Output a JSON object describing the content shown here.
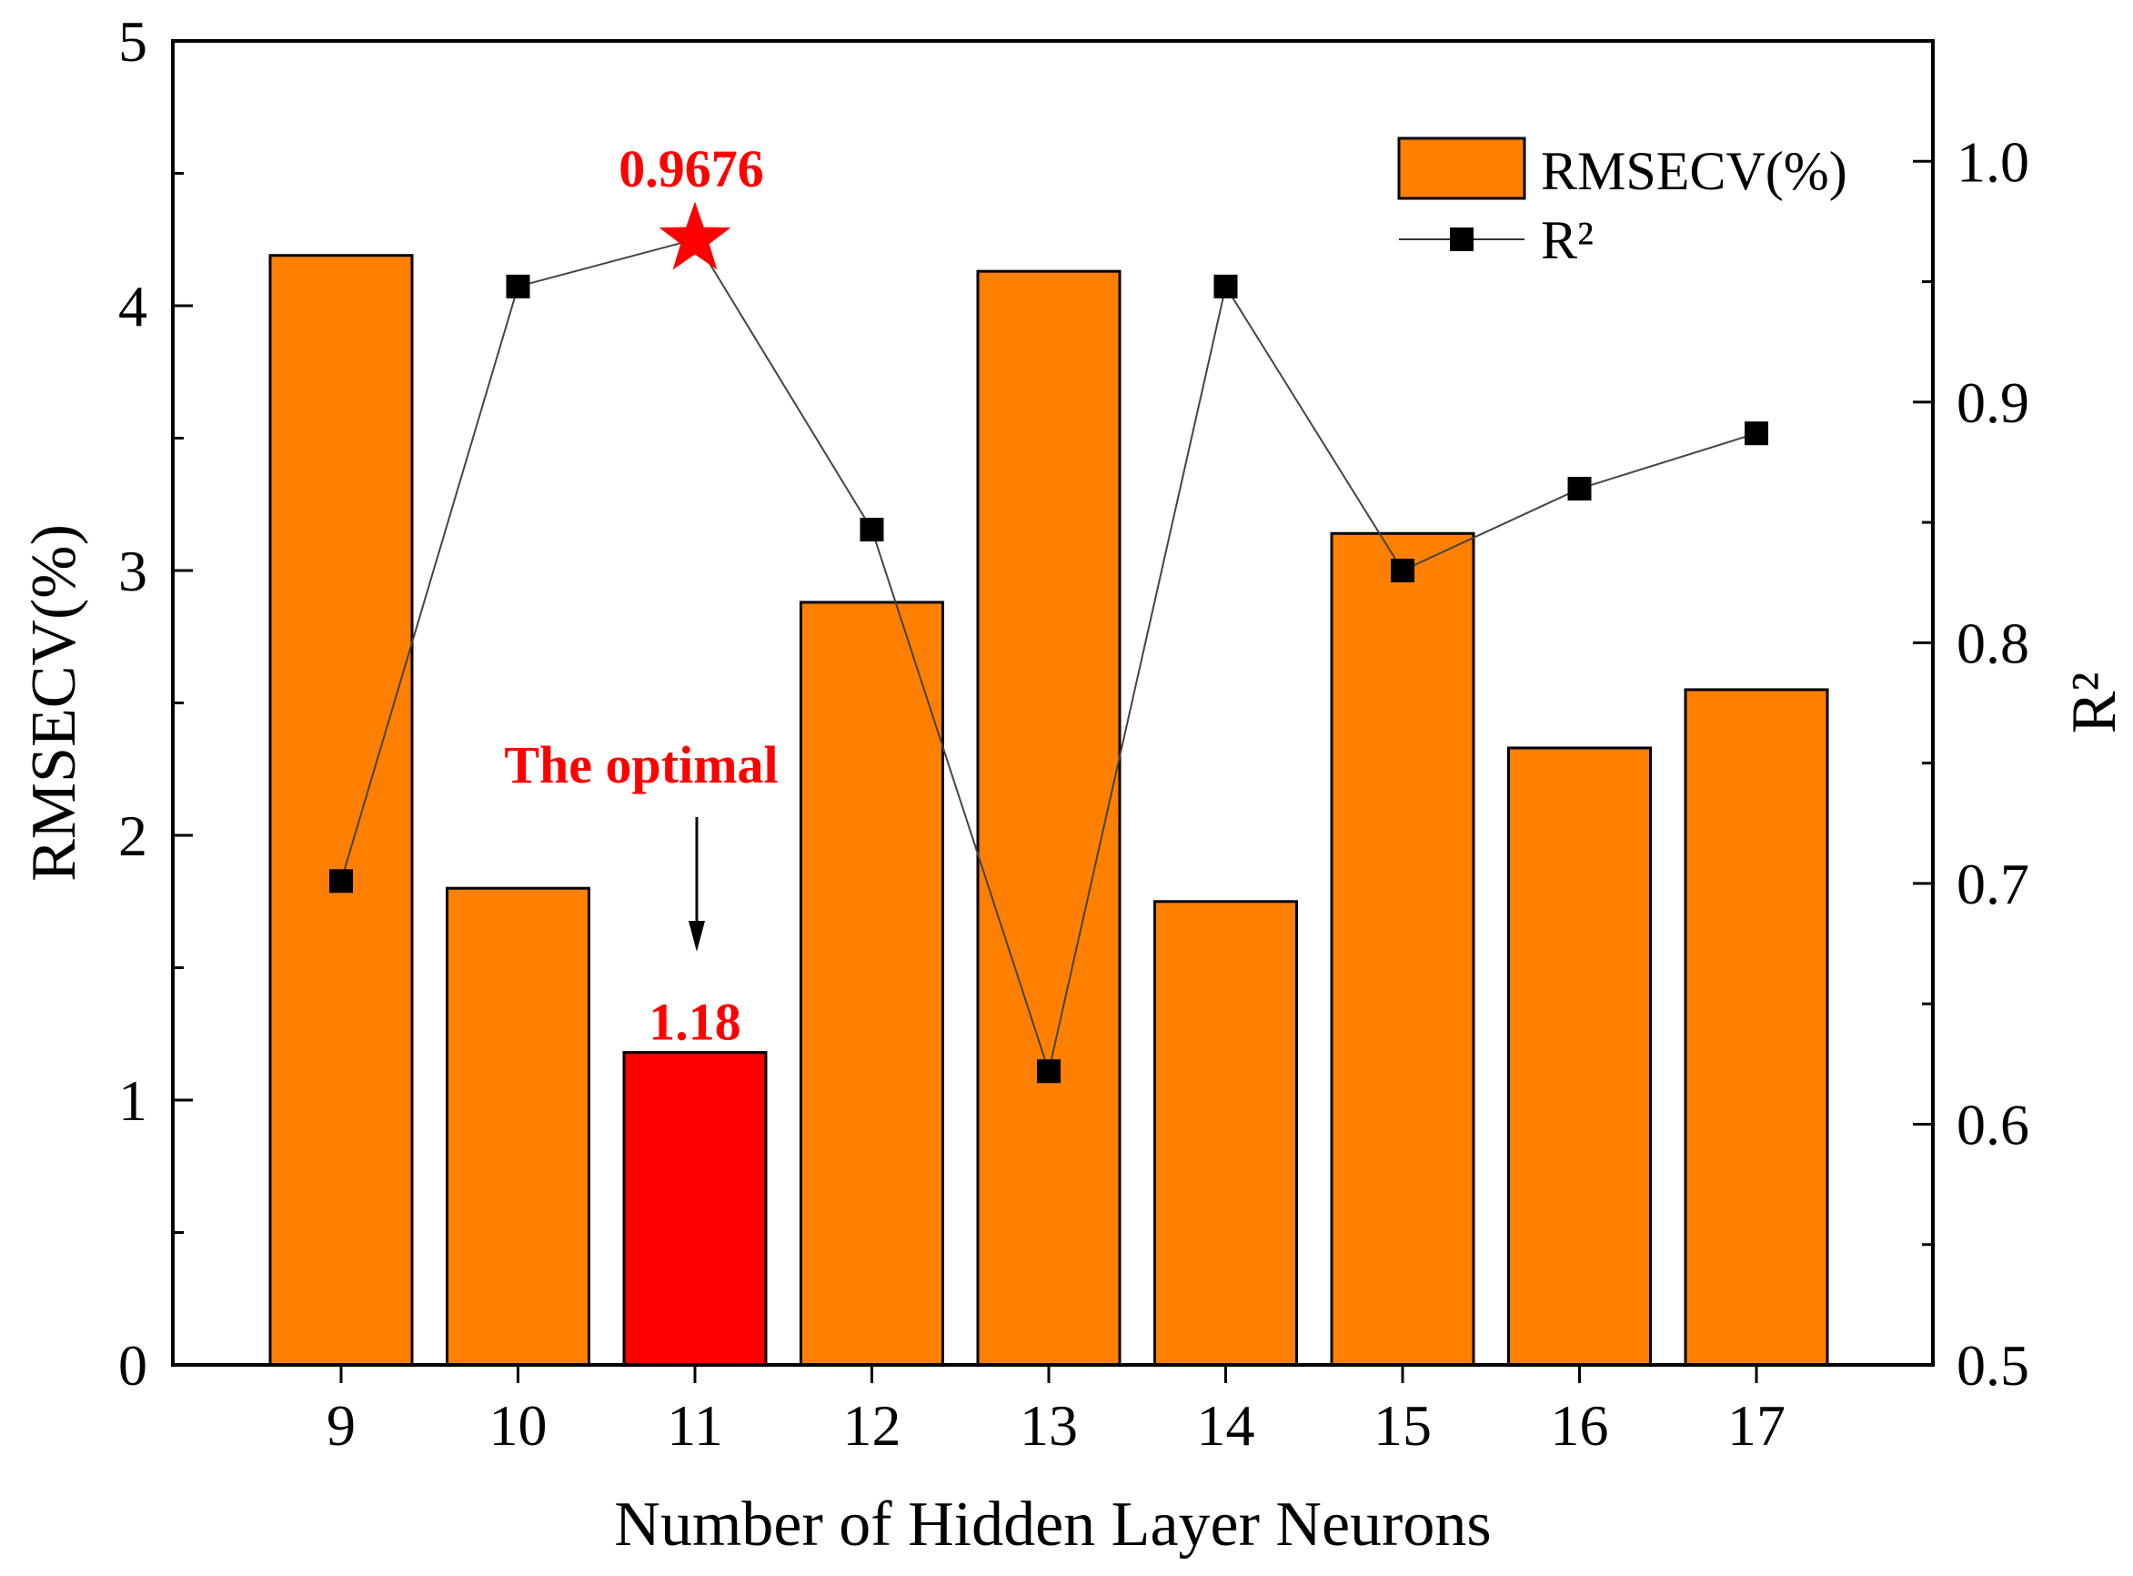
{
  "chart_data": {
    "type": "bar",
    "categories": [
      "9",
      "10",
      "11",
      "12",
      "13",
      "14",
      "15",
      "16",
      "17"
    ],
    "xlabel": "Number of Hidden Layer Neurons",
    "ylabel": "RMSECV(%)",
    "y2label": "R²",
    "ylim": [
      0,
      5
    ],
    "y2lim": [
      0.5,
      1.05
    ],
    "yticks": [
      "0",
      "1",
      "2",
      "3",
      "4",
      "5"
    ],
    "y2ticks": [
      "0.5",
      "0.6",
      "0.7",
      "0.8",
      "0.9",
      "1.0"
    ],
    "series": [
      {
        "name": "RMSECV(%)",
        "type": "bar",
        "axis": "left",
        "values": [
          4.19,
          1.8,
          1.18,
          2.88,
          4.13,
          1.75,
          3.14,
          2.33,
          2.55
        ],
        "color": "#FF8000",
        "highlight_index": 2,
        "highlight_color": "#FF0000"
      },
      {
        "name": "R²",
        "type": "line",
        "axis": "right",
        "values": [
          0.701,
          0.948,
          0.9676,
          0.847,
          0.622,
          0.948,
          0.83,
          0.864,
          0.887
        ],
        "color": "#000000",
        "marker": "square",
        "highlight_index": 2,
        "highlight_color": "#FF0000"
      }
    ],
    "legend": {
      "position": "top-right",
      "entries": [
        "RMSECV(%)",
        "R²"
      ]
    },
    "annotations": {
      "star_label": "0.9676",
      "bar_label": "1.18",
      "optimal_label": "The optimal",
      "color": "#FF0000"
    }
  }
}
